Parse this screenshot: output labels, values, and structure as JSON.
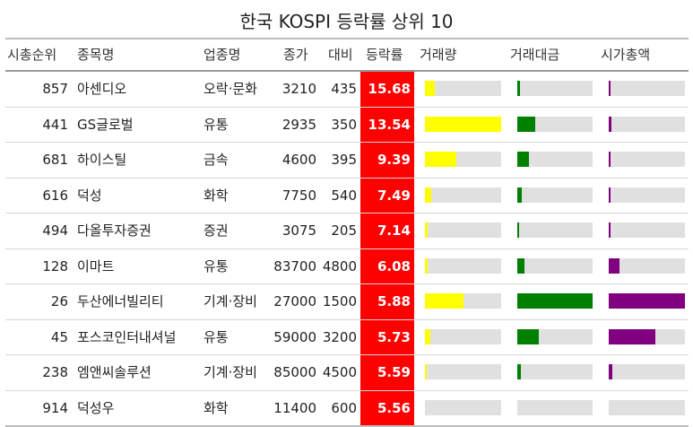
{
  "title": "한국 KOSPI 등락률 상위 10",
  "headers": {
    "rank": "시총순위",
    "name": "종목명",
    "sector": "업종명",
    "close": "종가",
    "change": "대비",
    "rate": "등락률",
    "volume": "거래량",
    "amount": "거래대금",
    "cap": "시가총액"
  },
  "colors": {
    "rate_bg": "#ff0000",
    "volume_bar": "#ffff00",
    "amount_bar": "#008000",
    "cap_bar": "#800080",
    "track": "#e0e0e0"
  },
  "rows": [
    {
      "rank": "857",
      "name": "아센디오",
      "sector": "오락·문화",
      "close": "3210",
      "change": "435",
      "rate": "15.68",
      "volume_level": 0.13,
      "amount_level": 0.04,
      "cap_level": 0.02
    },
    {
      "rank": "441",
      "name": "GS글로벌",
      "sector": "유통",
      "close": "2935",
      "change": "350",
      "rate": "13.54",
      "volume_level": 1.0,
      "amount_level": 0.24,
      "cap_level": 0.03
    },
    {
      "rank": "681",
      "name": "하이스틸",
      "sector": "금속",
      "close": "4600",
      "change": "395",
      "rate": "9.39",
      "volume_level": 0.41,
      "amount_level": 0.15,
      "cap_level": 0.02
    },
    {
      "rank": "616",
      "name": "덕성",
      "sector": "화학",
      "close": "7750",
      "change": "540",
      "rate": "7.49",
      "volume_level": 0.08,
      "amount_level": 0.06,
      "cap_level": 0.02
    },
    {
      "rank": "494",
      "name": "다올투자증권",
      "sector": "증권",
      "close": "3075",
      "change": "205",
      "rate": "7.14",
      "volume_level": 0.03,
      "amount_level": 0.02,
      "cap_level": 0.02
    },
    {
      "rank": "128",
      "name": "이마트",
      "sector": "유통",
      "close": "83700",
      "change": "4800",
      "rate": "6.08",
      "volume_level": 0.03,
      "amount_level": 0.09,
      "cap_level": 0.14
    },
    {
      "rank": "26",
      "name": "두산에너빌리티",
      "sector": "기계·장비",
      "close": "27000",
      "change": "1500",
      "rate": "5.88",
      "volume_level": 0.5,
      "amount_level": 1.0,
      "cap_level": 1.0
    },
    {
      "rank": "45",
      "name": "포스코인터내셔널",
      "sector": "유통",
      "close": "59000",
      "change": "3200",
      "rate": "5.73",
      "volume_level": 0.07,
      "amount_level": 0.28,
      "cap_level": 0.61
    },
    {
      "rank": "238",
      "name": "엠앤씨솔루션",
      "sector": "기계·장비",
      "close": "85000",
      "change": "4500",
      "rate": "5.59",
      "volume_level": 0.02,
      "amount_level": 0.05,
      "cap_level": 0.05
    },
    {
      "rank": "914",
      "name": "덕성우",
      "sector": "화학",
      "close": "11400",
      "change": "600",
      "rate": "5.56",
      "volume_level": 0.0,
      "amount_level": 0.0,
      "cap_level": 0.0
    }
  ]
}
